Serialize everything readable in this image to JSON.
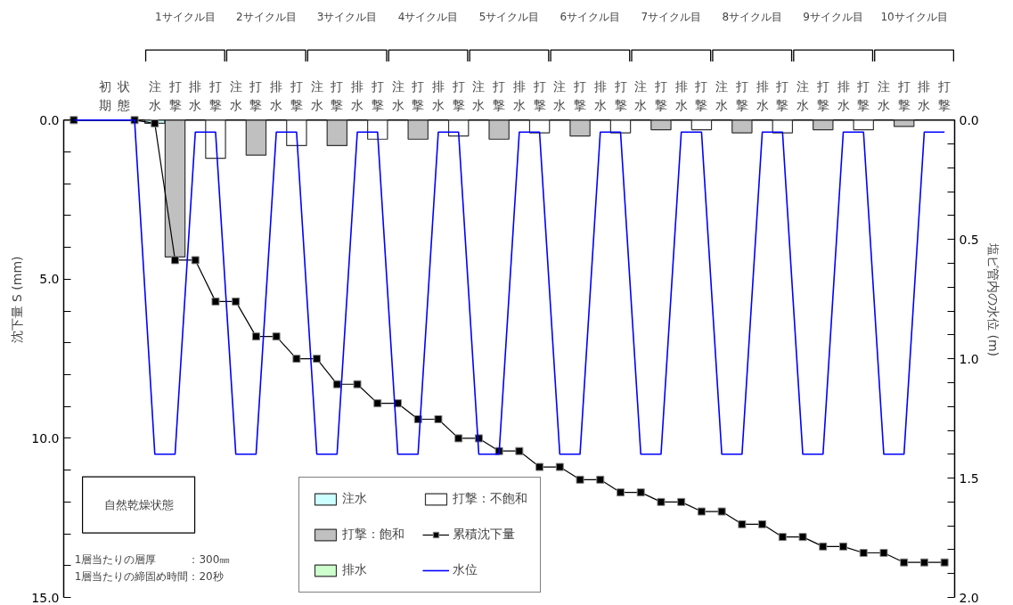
{
  "chart_data": {
    "type": "bar",
    "xlabel": null,
    "ylabel": "沈下量 S (mm)",
    "y2label": "塩ビ管内の水位 (m)",
    "categories": [
      null,
      null,
      "初期状態",
      null,
      "注水",
      "打撃",
      "排水",
      "打撃",
      "注水",
      "打撃",
      "排水",
      "打撃",
      "注水",
      "打撃",
      "排水",
      "打撃",
      "注水",
      "打撃",
      "排水",
      "打撃",
      "注水",
      "打撃",
      "排水",
      "打撃",
      "注水",
      "打撃",
      "排水",
      "打撃",
      "注水",
      "打撃",
      "排水",
      "打撃",
      "注水",
      "打撃",
      "排水",
      "打撃",
      "注水",
      "打撃",
      "排水",
      "打撃",
      "注水",
      "打撃",
      "排水",
      "打撃"
    ],
    "series": [
      {
        "name": "注水",
        "type": "bar",
        "color": "#ccffff",
        "values": [
          null,
          null,
          null,
          null,
          0.1,
          null,
          null,
          null,
          null,
          null,
          null,
          null,
          null,
          null,
          null,
          null,
          null,
          null,
          null,
          null,
          null,
          null,
          null,
          null,
          null,
          null,
          null,
          null,
          null,
          null,
          null,
          null,
          null,
          null,
          null,
          null,
          null,
          null,
          null,
          null,
          null,
          null,
          null,
          null
        ]
      },
      {
        "name": "打撃：飽和",
        "type": "bar",
        "color": "#c0c0c0",
        "values": [
          null,
          null,
          null,
          null,
          null,
          4.3,
          null,
          null,
          null,
          1.1,
          null,
          null,
          null,
          0.8,
          null,
          null,
          null,
          0.6,
          null,
          null,
          null,
          0.6,
          null,
          null,
          null,
          0.5,
          null,
          null,
          null,
          0.3,
          null,
          null,
          null,
          0.4,
          null,
          null,
          null,
          0.3,
          null,
          null,
          null,
          0.2,
          null,
          null
        ]
      },
      {
        "name": "排水",
        "type": "bar",
        "color": "#ccffcc",
        "values": [
          null,
          null,
          null,
          null,
          null,
          null,
          null,
          null,
          null,
          null,
          null,
          null,
          null,
          null,
          null,
          null,
          null,
          null,
          null,
          null,
          null,
          null,
          null,
          null,
          null,
          null,
          null,
          null,
          null,
          null,
          null,
          null,
          null,
          null,
          null,
          null,
          null,
          null,
          null,
          null,
          null,
          null,
          null,
          null
        ]
      },
      {
        "name": "打撃：不飽和",
        "type": "bar",
        "color": "#ffffff",
        "values": [
          null,
          null,
          null,
          null,
          null,
          null,
          null,
          1.2,
          null,
          null,
          null,
          0.8,
          null,
          null,
          null,
          0.6,
          null,
          null,
          null,
          0.5,
          null,
          null,
          null,
          0.4,
          null,
          null,
          null,
          0.4,
          null,
          null,
          null,
          0.3,
          null,
          null,
          null,
          0.4,
          null,
          null,
          null,
          0.3,
          null,
          null,
          null,
          null
        ]
      },
      {
        "name": "累積沈下量",
        "type": "line",
        "color": "#000000",
        "marker": "square",
        "values": [
          0,
          null,
          null,
          0,
          0.1,
          4.4,
          4.4,
          5.7,
          5.7,
          6.8,
          6.8,
          7.5,
          7.5,
          8.3,
          8.3,
          8.9,
          8.9,
          9.4,
          9.4,
          10.0,
          10.0,
          10.4,
          10.4,
          10.9,
          10.9,
          11.3,
          11.3,
          11.7,
          11.7,
          12.0,
          12.0,
          12.3,
          12.3,
          12.7,
          12.7,
          13.1,
          13.1,
          13.4,
          13.4,
          13.6,
          13.6,
          13.9,
          13.9,
          13.9
        ]
      },
      {
        "name": "水位",
        "type": "line",
        "color": "#0000ff",
        "axis": "y2",
        "values": [
          0,
          null,
          null,
          0,
          1.4,
          1.4,
          0.05,
          0.05,
          1.4,
          1.4,
          0.05,
          0.05,
          1.4,
          1.4,
          0.05,
          0.05,
          1.4,
          1.4,
          0.05,
          0.05,
          1.4,
          1.4,
          0.05,
          0.05,
          1.4,
          1.4,
          0.05,
          0.05,
          1.4,
          1.4,
          0.05,
          0.05,
          1.4,
          1.4,
          0.05,
          0.05,
          1.4,
          1.4,
          0.05,
          0.05,
          1.4,
          1.4,
          0.05,
          0.05
        ]
      }
    ],
    "ylim": [
      15,
      0
    ],
    "yticks": [
      {
        "value": 0,
        "label": "0.0"
      },
      {
        "value": 1,
        "label": null
      },
      {
        "value": 2,
        "label": null
      },
      {
        "value": 3,
        "label": null
      },
      {
        "value": 4,
        "label": null
      },
      {
        "value": 5,
        "label": "5.0"
      },
      {
        "value": 6,
        "label": null
      },
      {
        "value": 7,
        "label": null
      },
      {
        "value": 8,
        "label": null
      },
      {
        "value": 9,
        "label": null
      },
      {
        "value": 10,
        "label": "10.0"
      },
      {
        "value": 11,
        "label": null
      },
      {
        "value": 12,
        "label": null
      },
      {
        "value": 13,
        "label": null
      },
      {
        "value": 14,
        "label": null
      },
      {
        "value": 15,
        "label": "15.0"
      }
    ],
    "y2lim": [
      2.0,
      0
    ],
    "y2ticks": [
      {
        "value": 0,
        "label": "0.0"
      },
      {
        "value": 0.1,
        "label": null
      },
      {
        "value": 0.2,
        "label": null
      },
      {
        "value": 0.3,
        "label": null
      },
      {
        "value": 0.4,
        "label": null
      },
      {
        "value": 0.5,
        "label": "0.5"
      },
      {
        "value": 0.6,
        "label": null
      },
      {
        "value": 0.7,
        "label": null
      },
      {
        "value": 0.8,
        "label": null
      },
      {
        "value": 0.9,
        "label": null
      },
      {
        "value": 1.0,
        "label": "1.0"
      },
      {
        "value": 1.1,
        "label": null
      },
      {
        "value": 1.2,
        "label": null
      },
      {
        "value": 1.3,
        "label": null
      },
      {
        "value": 1.4,
        "label": null
      },
      {
        "value": 1.5,
        "label": "1.5"
      },
      {
        "value": 1.6,
        "label": null
      },
      {
        "value": 1.7,
        "label": null
      },
      {
        "value": 1.8,
        "label": null
      },
      {
        "value": 1.9,
        "label": null
      },
      {
        "value": 2.0,
        "label": "2.0"
      }
    ],
    "legend": "bottom",
    "annotations": [
      "1サイクル目",
      "2サイクル目",
      "3サイクル目",
      "4サイクル目",
      "5サイクル目",
      "6サイクル目",
      "7サイクル目",
      "8サイクル目",
      "9サイクル目",
      "10サイクル目",
      "自然乾燥状態",
      "1層当たりの層厚　　　：300㎜",
      "1層当たりの締固め時間：20秒"
    ]
  }
}
